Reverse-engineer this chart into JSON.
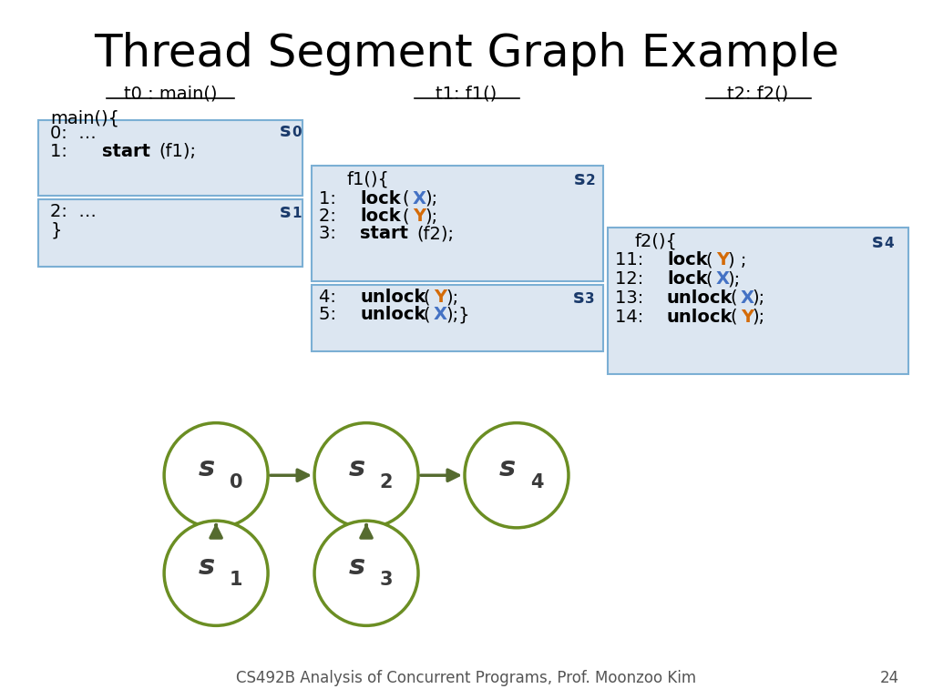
{
  "title": "Thread Segment Graph Example",
  "title_fontsize": 36,
  "bg_color": "#ffffff",
  "box_color_fill": "#dce6f1",
  "box_color_edge": "#7bafd4",
  "node_fill": "#ffffff",
  "node_edge": "#6b8e23",
  "node_edge_width": 2.5,
  "arrow_color": "#556b2f",
  "footer": "CS492B Analysis of Concurrent Programs, Prof. Moonzoo Kim",
  "footer_fontsize": 12,
  "page_number": "24",
  "label_dark_blue": "#1a3a6b",
  "color_X": "#4472c4",
  "color_Y": "#d46b08",
  "code_black": "#000000",
  "node_label_color": "#3a3a3a"
}
